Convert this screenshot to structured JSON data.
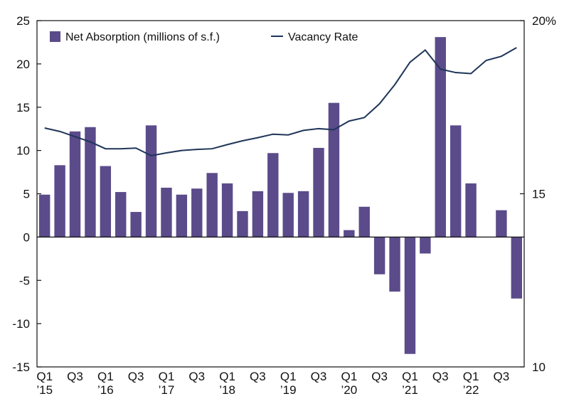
{
  "colors": {
    "bar": "#5b4b8a",
    "line": "#1f3558",
    "axis": "#111111",
    "background": "#ffffff"
  },
  "chart_data": {
    "type": "bar",
    "legend": {
      "placement": "top-left",
      "entries": [
        "Net Absorption (millions of s.f.)",
        "Vacancy Rate"
      ]
    },
    "grid": false,
    "y_left": {
      "ylim": [
        -15,
        25
      ],
      "ticks": [
        "-15",
        "-10",
        "-5",
        "0",
        "5",
        "10",
        "15",
        "20",
        "25"
      ]
    },
    "y_right": {
      "ylim": [
        10,
        20
      ],
      "ticks": [
        "10",
        "15",
        "20%"
      ]
    },
    "x_tick_labels": [
      {
        "q": "Q1",
        "yr": "’15"
      },
      {
        "q": "Q3",
        "yr": ""
      },
      {
        "q": "Q1",
        "yr": "’16"
      },
      {
        "q": "Q3",
        "yr": ""
      },
      {
        "q": "Q1",
        "yr": "’17"
      },
      {
        "q": "Q3",
        "yr": ""
      },
      {
        "q": "Q1",
        "yr": "’18"
      },
      {
        "q": "Q3",
        "yr": ""
      },
      {
        "q": "Q1",
        "yr": "’19"
      },
      {
        "q": "Q3",
        "yr": ""
      },
      {
        "q": "Q1",
        "yr": "’20"
      },
      {
        "q": "Q3",
        "yr": ""
      },
      {
        "q": "Q1",
        "yr": "’21"
      },
      {
        "q": "Q3",
        "yr": ""
      },
      {
        "q": "Q1",
        "yr": "’22"
      },
      {
        "q": "Q3",
        "yr": ""
      }
    ],
    "quarters": [
      "2015 Q1",
      "2015 Q2",
      "2015 Q3",
      "2015 Q4",
      "2016 Q1",
      "2016 Q2",
      "2016 Q3",
      "2016 Q4",
      "2017 Q1",
      "2017 Q2",
      "2017 Q3",
      "2017 Q4",
      "2018 Q1",
      "2018 Q2",
      "2018 Q3",
      "2018 Q4",
      "2019 Q1",
      "2019 Q2",
      "2019 Q3",
      "2019 Q4",
      "2020 Q1",
      "2020 Q2",
      "2020 Q3",
      "2020 Q4",
      "2021 Q1",
      "2021 Q2",
      "2021 Q3",
      "2021 Q4",
      "2022 Q1",
      "2022 Q2",
      "2022 Q3",
      "2022 Q4"
    ],
    "series": [
      {
        "name": "Net Absorption (millions of s.f.)",
        "type": "bar",
        "axis": "left",
        "values": [
          4.9,
          8.3,
          12.2,
          12.7,
          8.2,
          5.2,
          2.9,
          12.9,
          5.7,
          4.9,
          5.6,
          7.4,
          6.2,
          3.0,
          5.3,
          9.7,
          5.1,
          5.3,
          10.3,
          15.5,
          0.8,
          3.5,
          -4.3,
          -6.3,
          -13.5,
          -1.9,
          23.1,
          12.9,
          6.2,
          0.0,
          3.1,
          -7.1
        ]
      },
      {
        "name": "Vacancy Rate",
        "type": "line",
        "axis": "right",
        "values": [
          16.9,
          16.8,
          16.65,
          16.5,
          16.3,
          16.3,
          16.32,
          16.1,
          16.18,
          16.25,
          16.28,
          16.3,
          16.42,
          16.53,
          16.62,
          16.72,
          16.7,
          16.83,
          16.88,
          16.85,
          17.1,
          17.2,
          17.6,
          18.15,
          18.8,
          19.15,
          18.6,
          18.5,
          18.47,
          18.85,
          18.97,
          19.22
        ]
      }
    ]
  }
}
